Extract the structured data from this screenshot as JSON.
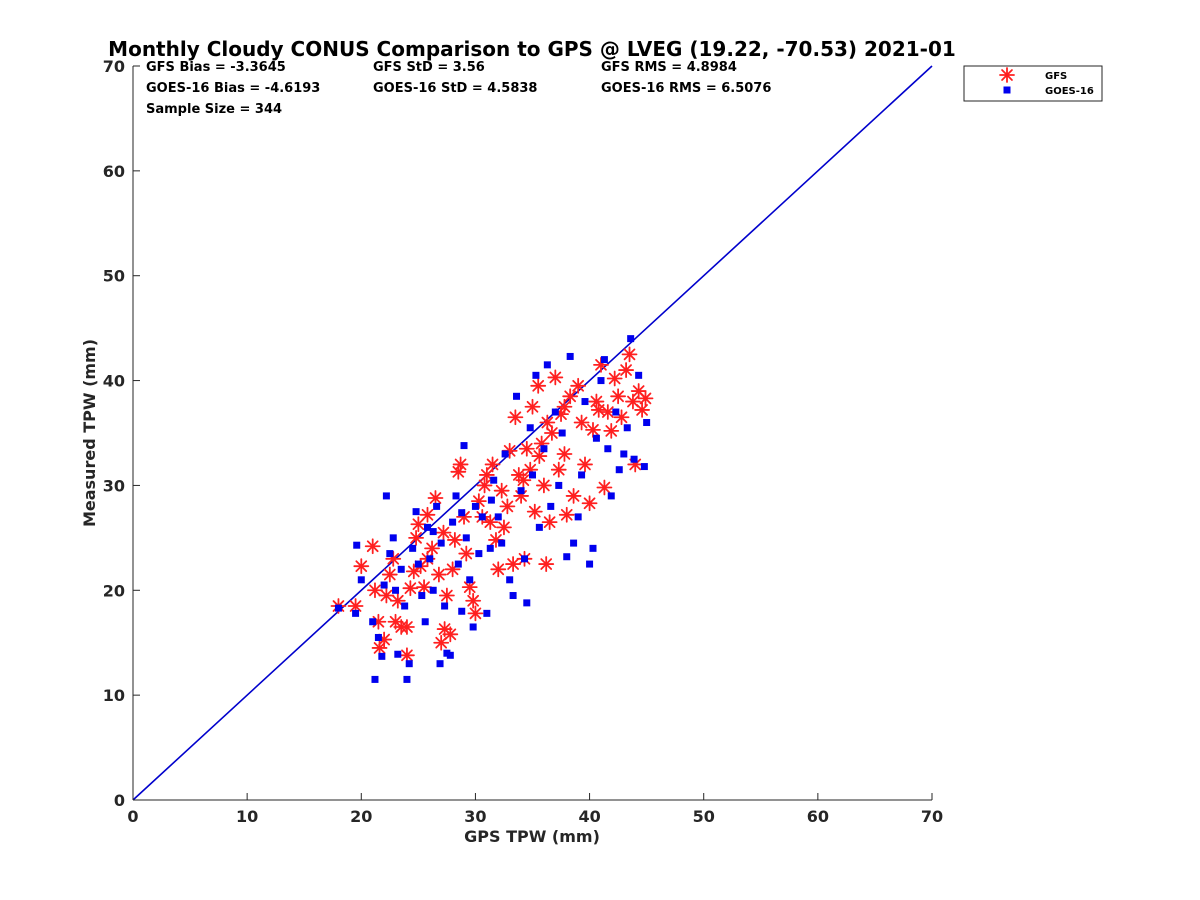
{
  "chart_data": {
    "type": "scatter",
    "title": "Monthly Cloudy CONUS Comparison to GPS @ LVEG (19.22, -70.53) 2021-01",
    "xlabel": "GPS TPW (mm)",
    "ylabel": "Measured TPW (mm)",
    "xlim": [
      0,
      70
    ],
    "ylim": [
      0,
      70
    ],
    "xticks": [
      "0",
      "10",
      "20",
      "30",
      "40",
      "50",
      "60",
      "70"
    ],
    "yticks": [
      "0",
      "10",
      "20",
      "30",
      "40",
      "50",
      "60",
      "70"
    ],
    "grid": false,
    "legend_position": "top-right (outside plot)",
    "stats": {
      "gfs_bias": "GFS Bias = -3.3645",
      "goes_bias": "GOES-16 Bias = -4.6193",
      "sample_size": "Sample Size = 344",
      "gfs_std": "GFS StD = 3.56",
      "goes_std": "GOES-16 StD = 4.5838",
      "gfs_rms": "GFS RMS = 4.8984",
      "goes_rms": "GOES-16 RMS = 6.5076"
    },
    "reference_line": {
      "x": [
        0,
        70
      ],
      "y": [
        0,
        70
      ],
      "color": "#0000cc"
    },
    "series": [
      {
        "name": "GFS",
        "marker": "asterisk",
        "color": "#ff2020",
        "points": [
          [
            18.0,
            18.5
          ],
          [
            19.5,
            18.5
          ],
          [
            20.0,
            22.3
          ],
          [
            21.0,
            24.2
          ],
          [
            21.2,
            20.0
          ],
          [
            21.5,
            17.0
          ],
          [
            21.6,
            14.5
          ],
          [
            22.0,
            15.3
          ],
          [
            22.2,
            19.5
          ],
          [
            22.5,
            21.5
          ],
          [
            22.8,
            23.0
          ],
          [
            23.0,
            17.0
          ],
          [
            23.2,
            19.0
          ],
          [
            23.5,
            16.5
          ],
          [
            24.0,
            13.8
          ],
          [
            24.0,
            16.5
          ],
          [
            24.3,
            20.2
          ],
          [
            24.6,
            21.8
          ],
          [
            24.8,
            25.0
          ],
          [
            25.0,
            26.3
          ],
          [
            25.2,
            22.3
          ],
          [
            25.5,
            20.3
          ],
          [
            25.8,
            23.0
          ],
          [
            26.2,
            24.0
          ],
          [
            26.5,
            28.8
          ],
          [
            26.8,
            21.5
          ],
          [
            27.0,
            15.0
          ],
          [
            27.3,
            16.3
          ],
          [
            27.5,
            19.5
          ],
          [
            27.8,
            15.8
          ],
          [
            28.0,
            22.0
          ],
          [
            28.2,
            24.8
          ],
          [
            28.5,
            31.3
          ],
          [
            28.7,
            32.0
          ],
          [
            29.0,
            27.0
          ],
          [
            29.2,
            23.5
          ],
          [
            29.5,
            20.3
          ],
          [
            29.8,
            19.0
          ],
          [
            30.0,
            17.8
          ],
          [
            30.3,
            28.5
          ],
          [
            30.6,
            27.0
          ],
          [
            31.0,
            31.0
          ],
          [
            31.3,
            26.5
          ],
          [
            31.5,
            32.0
          ],
          [
            31.8,
            24.8
          ],
          [
            32.0,
            22.0
          ],
          [
            32.3,
            29.5
          ],
          [
            32.5,
            26.0
          ],
          [
            32.8,
            28.0
          ],
          [
            33.0,
            33.3
          ],
          [
            33.3,
            22.5
          ],
          [
            33.5,
            36.5
          ],
          [
            33.8,
            31.0
          ],
          [
            34.0,
            29.0
          ],
          [
            34.3,
            23.0
          ],
          [
            34.5,
            33.5
          ],
          [
            34.8,
            31.5
          ],
          [
            35.0,
            37.5
          ],
          [
            35.2,
            27.5
          ],
          [
            35.5,
            39.5
          ],
          [
            35.8,
            34.0
          ],
          [
            36.0,
            30.0
          ],
          [
            36.2,
            22.5
          ],
          [
            36.5,
            26.5
          ],
          [
            36.7,
            35.0
          ],
          [
            37.0,
            40.3
          ],
          [
            37.3,
            31.5
          ],
          [
            37.5,
            36.8
          ],
          [
            37.8,
            33.0
          ],
          [
            38.0,
            27.2
          ],
          [
            38.3,
            38.5
          ],
          [
            38.6,
            29.0
          ],
          [
            39.0,
            39.5
          ],
          [
            39.3,
            36.0
          ],
          [
            39.6,
            32.0
          ],
          [
            40.0,
            28.3
          ],
          [
            40.3,
            35.3
          ],
          [
            40.6,
            38.0
          ],
          [
            41.0,
            41.5
          ],
          [
            41.3,
            29.8
          ],
          [
            41.6,
            37.0
          ],
          [
            41.9,
            35.2
          ],
          [
            42.2,
            40.2
          ],
          [
            42.5,
            38.5
          ],
          [
            42.8,
            36.5
          ],
          [
            43.2,
            41.0
          ],
          [
            43.5,
            42.5
          ],
          [
            43.8,
            38.0
          ],
          [
            44.0,
            32.0
          ],
          [
            44.3,
            39.0
          ],
          [
            44.6,
            37.2
          ],
          [
            44.9,
            38.3
          ],
          [
            36.3,
            36.0
          ],
          [
            34.2,
            30.5
          ],
          [
            35.6,
            32.8
          ],
          [
            30.8,
            30.0
          ],
          [
            27.2,
            25.5
          ],
          [
            25.8,
            27.2
          ],
          [
            37.8,
            37.5
          ],
          [
            40.8,
            37.2
          ]
        ]
      },
      {
        "name": "GOES-16",
        "marker": "square",
        "color": "#0000ee",
        "points": [
          [
            18.0,
            18.3
          ],
          [
            19.5,
            17.8
          ],
          [
            19.6,
            24.3
          ],
          [
            20.0,
            21.0
          ],
          [
            21.0,
            17.0
          ],
          [
            21.2,
            11.5
          ],
          [
            21.5,
            15.5
          ],
          [
            21.8,
            13.7
          ],
          [
            22.0,
            20.5
          ],
          [
            22.2,
            29.0
          ],
          [
            22.5,
            23.5
          ],
          [
            22.8,
            25.0
          ],
          [
            23.0,
            20.0
          ],
          [
            23.2,
            13.9
          ],
          [
            23.5,
            22.0
          ],
          [
            23.8,
            18.5
          ],
          [
            24.0,
            11.5
          ],
          [
            24.2,
            13.0
          ],
          [
            24.5,
            24.0
          ],
          [
            24.8,
            27.5
          ],
          [
            25.0,
            22.5
          ],
          [
            25.3,
            19.5
          ],
          [
            25.6,
            17.0
          ],
          [
            25.8,
            26.0
          ],
          [
            26.0,
            23.0
          ],
          [
            26.3,
            20.0
          ],
          [
            26.6,
            28.0
          ],
          [
            26.9,
            13.0
          ],
          [
            27.0,
            24.5
          ],
          [
            27.3,
            18.5
          ],
          [
            27.5,
            14.0
          ],
          [
            27.8,
            13.8
          ],
          [
            28.0,
            26.5
          ],
          [
            28.3,
            29.0
          ],
          [
            28.5,
            22.5
          ],
          [
            28.8,
            18.0
          ],
          [
            29.0,
            33.8
          ],
          [
            29.2,
            25.0
          ],
          [
            29.5,
            21.0
          ],
          [
            29.8,
            16.5
          ],
          [
            30.0,
            28.0
          ],
          [
            30.3,
            23.5
          ],
          [
            30.6,
            27.0
          ],
          [
            31.0,
            17.8
          ],
          [
            31.3,
            24.0
          ],
          [
            31.6,
            30.5
          ],
          [
            32.0,
            27.0
          ],
          [
            32.3,
            24.5
          ],
          [
            32.6,
            33.0
          ],
          [
            33.0,
            21.0
          ],
          [
            33.3,
            19.5
          ],
          [
            33.6,
            38.5
          ],
          [
            34.0,
            29.5
          ],
          [
            34.3,
            23.0
          ],
          [
            34.5,
            18.8
          ],
          [
            34.8,
            35.5
          ],
          [
            35.0,
            31.0
          ],
          [
            35.3,
            40.5
          ],
          [
            35.6,
            26.0
          ],
          [
            36.0,
            33.5
          ],
          [
            36.3,
            41.5
          ],
          [
            36.6,
            28.0
          ],
          [
            37.0,
            37.0
          ],
          [
            37.3,
            30.0
          ],
          [
            37.6,
            35.0
          ],
          [
            38.0,
            23.2
          ],
          [
            38.3,
            42.3
          ],
          [
            38.6,
            24.5
          ],
          [
            39.0,
            27.0
          ],
          [
            39.3,
            31.0
          ],
          [
            39.6,
            38.0
          ],
          [
            40.0,
            22.5
          ],
          [
            40.3,
            24.0
          ],
          [
            40.6,
            34.5
          ],
          [
            41.0,
            40.0
          ],
          [
            41.3,
            42.0
          ],
          [
            41.6,
            33.5
          ],
          [
            41.9,
            29.0
          ],
          [
            42.3,
            37.0
          ],
          [
            42.6,
            31.5
          ],
          [
            43.0,
            33.0
          ],
          [
            43.3,
            35.5
          ],
          [
            43.6,
            44.0
          ],
          [
            43.9,
            32.5
          ],
          [
            44.3,
            40.5
          ],
          [
            44.8,
            31.8
          ],
          [
            45.0,
            36.0
          ],
          [
            26.3,
            25.6
          ],
          [
            28.8,
            27.4
          ],
          [
            31.4,
            28.6
          ]
        ]
      }
    ]
  },
  "colors": {
    "gfs": "#ff2020",
    "goes": "#0000ee",
    "reference_line": "#0000cc",
    "axis": "#262626"
  }
}
